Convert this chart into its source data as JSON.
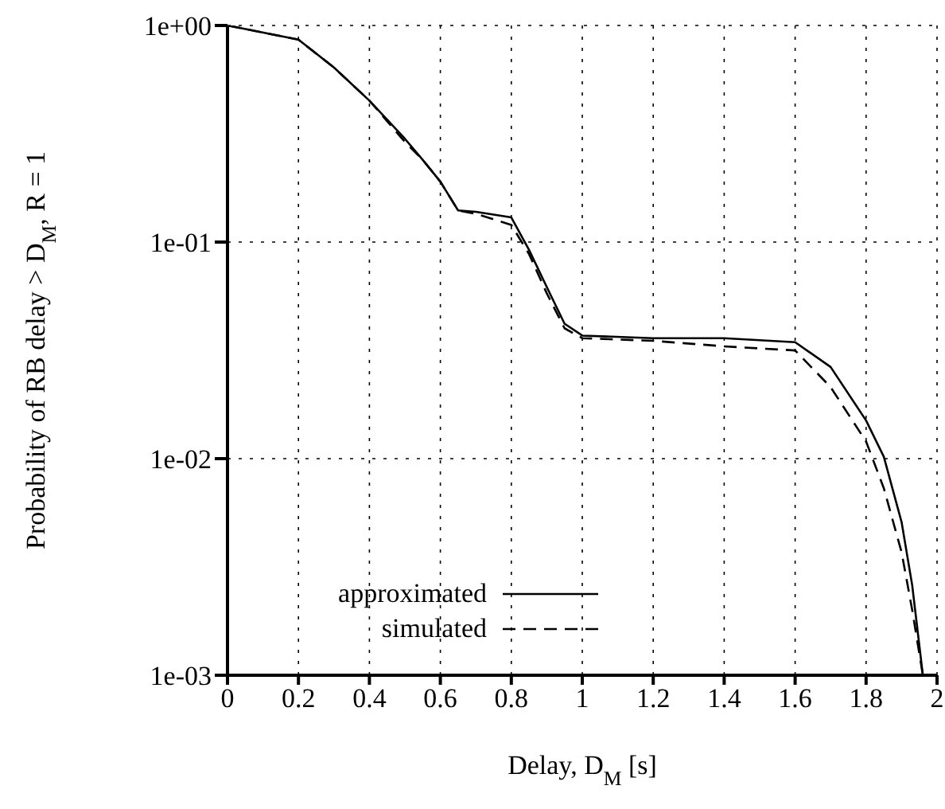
{
  "chart_data": {
    "type": "line",
    "xlabel": "Delay, D$_{M}$ [s]",
    "ylabel": "Probability of RB delay > D$_{M}$, R = 1",
    "x": [
      0,
      0.2,
      0.3,
      0.4,
      0.5,
      0.55,
      0.6,
      0.65,
      0.7,
      0.8,
      0.85,
      0.9,
      0.95,
      1.0,
      1.2,
      1.4,
      1.6,
      1.7,
      1.8,
      1.85,
      1.9,
      1.93,
      1.96
    ],
    "series": [
      {
        "name": "approximated",
        "color": "#000000",
        "line_style": "solid",
        "values": [
          1,
          0.86,
          0.64,
          0.45,
          0.3,
          0.24,
          0.19,
          0.14,
          0.138,
          0.13,
          0.092,
          0.062,
          0.042,
          0.037,
          0.036,
          0.036,
          0.0345,
          0.0265,
          0.015,
          0.0102,
          0.0051,
          0.0026,
          0.001
        ]
      },
      {
        "name": "simulated",
        "color": "#000000",
        "line_style": "dashed",
        "values": [
          1,
          0.86,
          0.64,
          0.45,
          0.29,
          0.24,
          0.19,
          0.14,
          0.135,
          0.12,
          0.088,
          0.058,
          0.04,
          0.036,
          0.035,
          0.033,
          0.0316,
          0.0214,
          0.012,
          0.0073,
          0.0037,
          0.002,
          0.001
        ]
      }
    ],
    "xlim": [
      0,
      2
    ],
    "xticks": [
      0,
      0.2,
      0.4,
      0.6,
      0.8,
      1,
      1.2,
      1.4,
      1.6,
      1.8,
      2
    ],
    "ylim": [
      0.001,
      1
    ],
    "yticks": [
      {
        "value": 1,
        "label": "1e+00"
      },
      {
        "value": 0.1,
        "label": "1e-01"
      },
      {
        "value": 0.01,
        "label": "1e-02"
      },
      {
        "value": 0.001,
        "label": "1e-03"
      }
    ],
    "log": true,
    "grid": true,
    "legend": "bottom",
    "marker": "none"
  }
}
